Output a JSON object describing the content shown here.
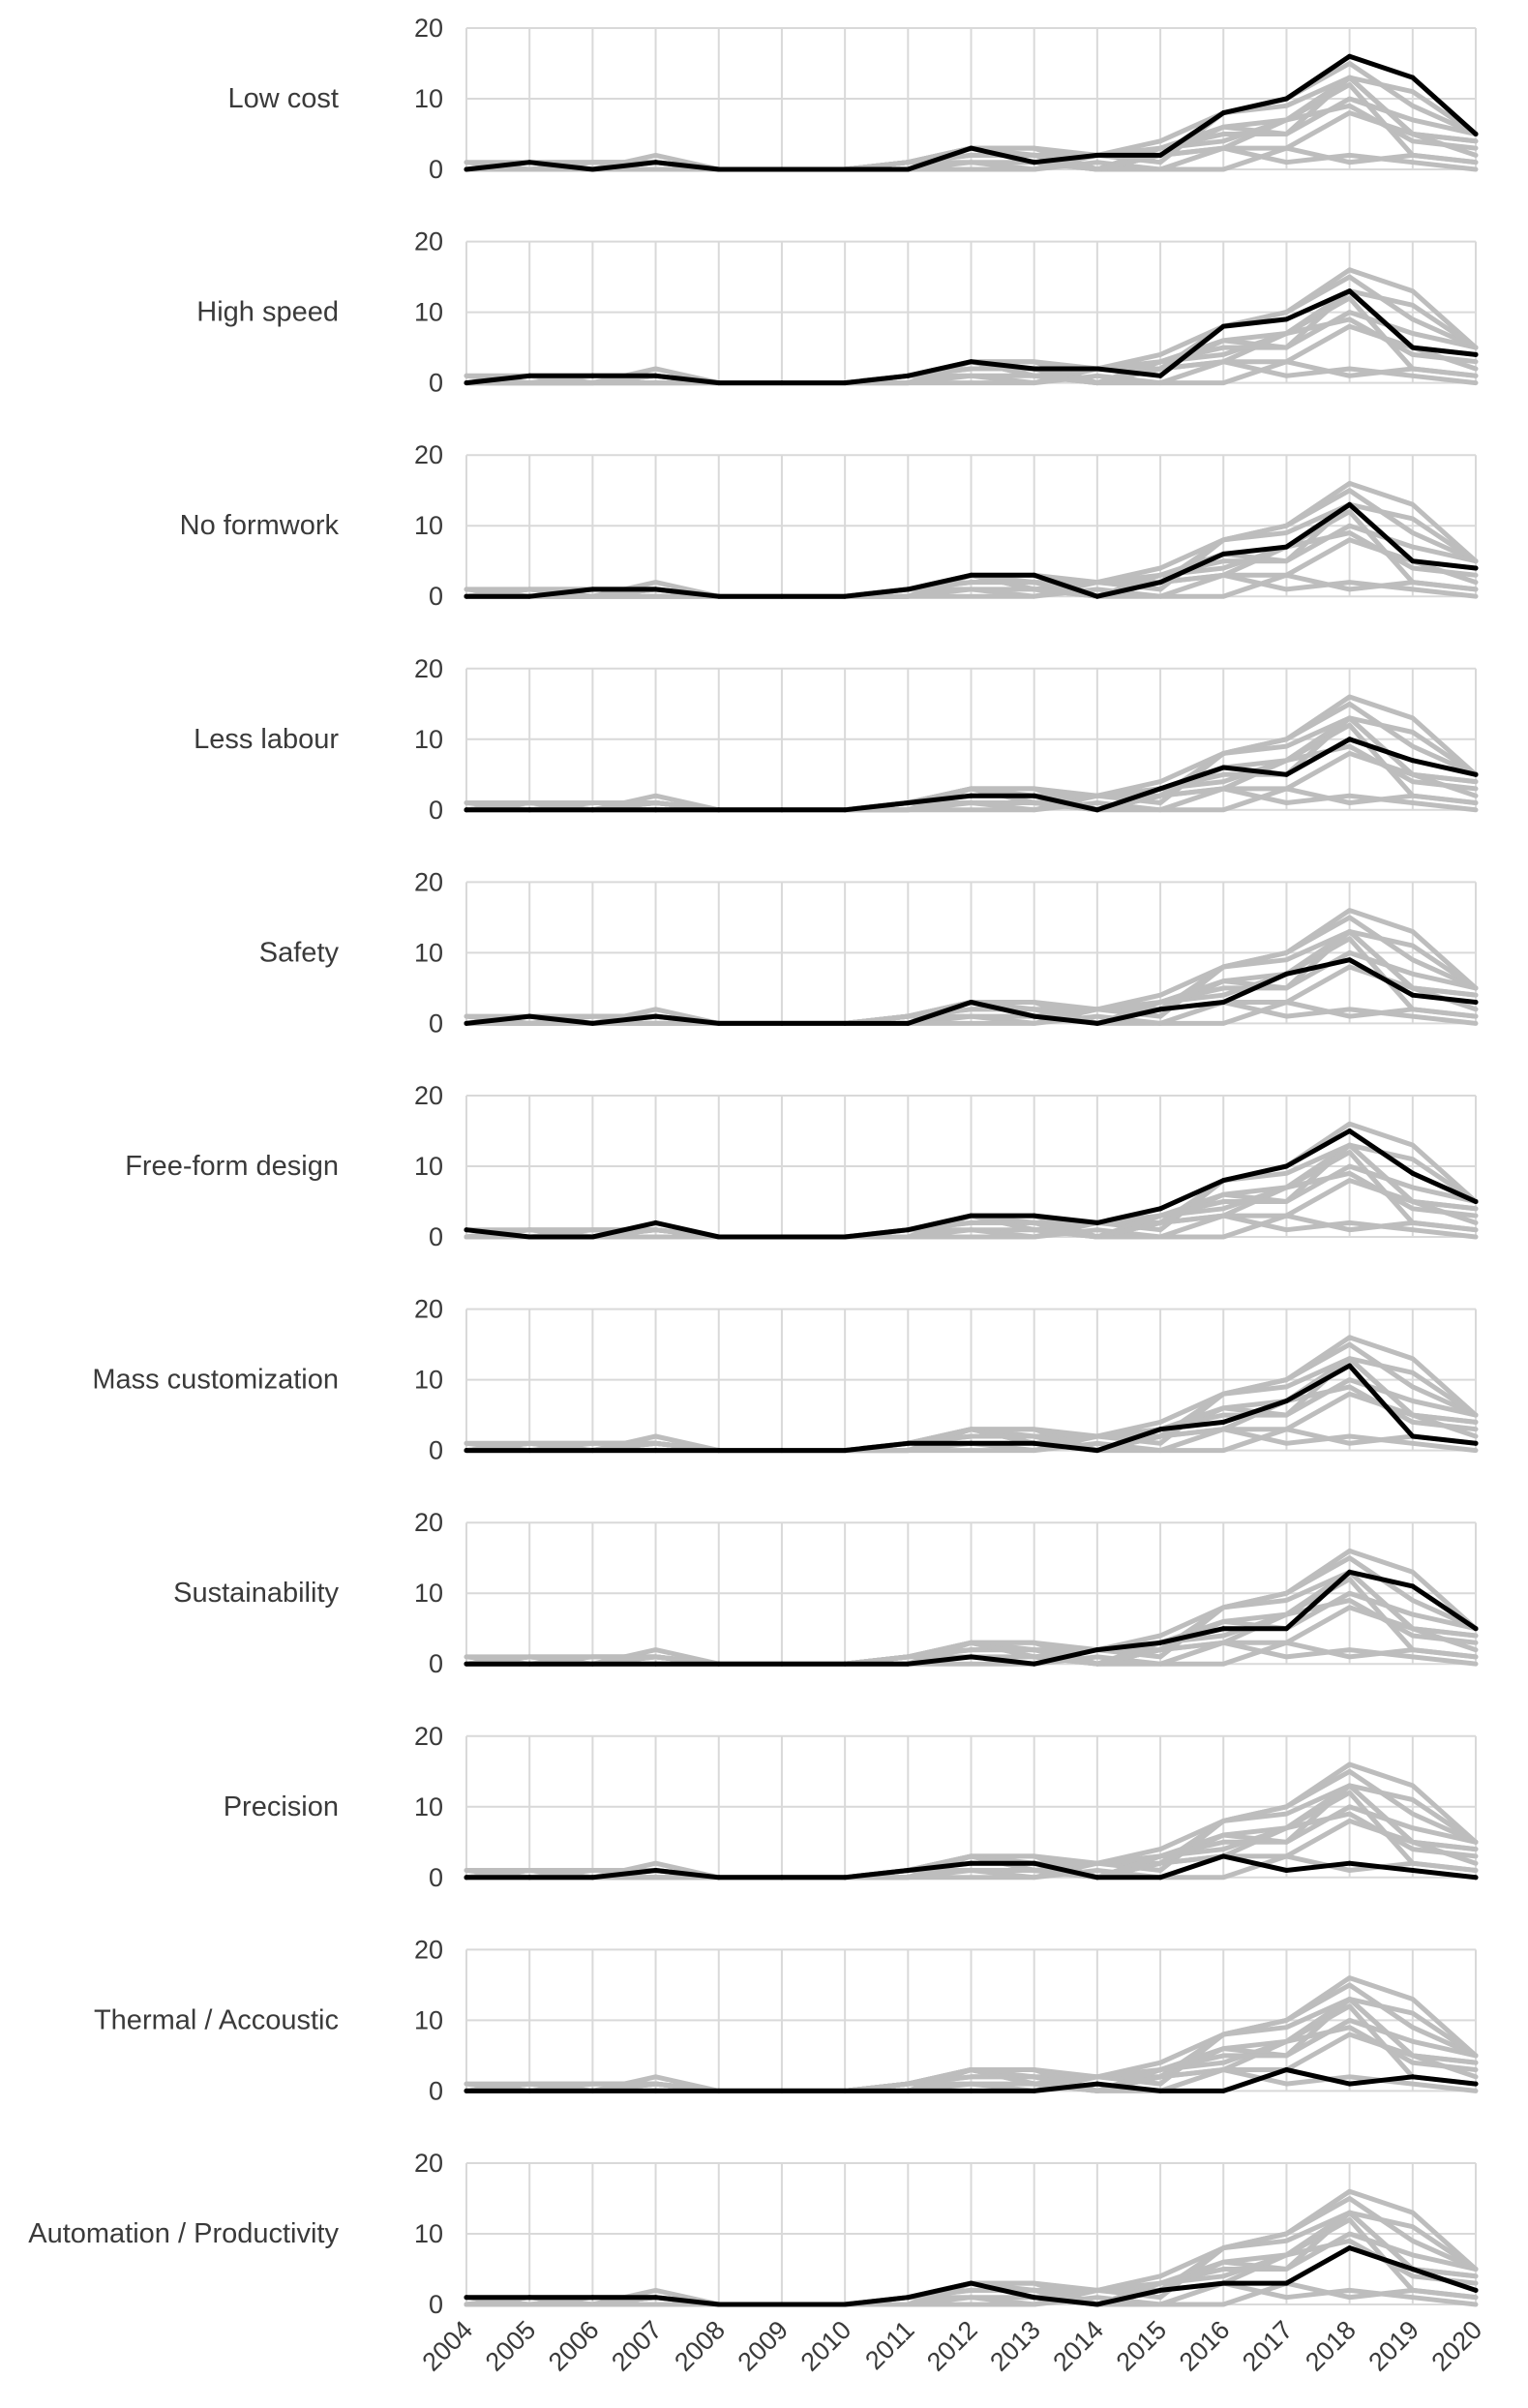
{
  "chart_data": {
    "type": "line",
    "layout": "small-multiples",
    "x": [
      "2004",
      "2005",
      "2006",
      "2007",
      "2008",
      "2009",
      "2010",
      "2011",
      "2012",
      "2013",
      "2014",
      "2015",
      "2016",
      "2017",
      "2018",
      "2019",
      "2020"
    ],
    "ylim": [
      0,
      20
    ],
    "yticks": [
      0,
      10,
      20
    ],
    "grid": true,
    "highlight_color": "#000000",
    "context_color": "#bdbdbd",
    "series": [
      {
        "name": "Low cost",
        "values": [
          0,
          1,
          0,
          1,
          0,
          0,
          0,
          0,
          3,
          1,
          2,
          2,
          8,
          10,
          16,
          13,
          5
        ]
      },
      {
        "name": "High speed",
        "values": [
          0,
          1,
          1,
          1,
          0,
          0,
          0,
          1,
          3,
          2,
          2,
          1,
          8,
          9,
          13,
          5,
          4
        ]
      },
      {
        "name": "No formwork",
        "values": [
          0,
          0,
          1,
          1,
          0,
          0,
          0,
          1,
          3,
          3,
          0,
          2,
          6,
          7,
          13,
          5,
          4
        ]
      },
      {
        "name": "Less labour",
        "values": [
          0,
          0,
          0,
          0,
          0,
          0,
          0,
          1,
          2,
          2,
          0,
          3,
          6,
          5,
          10,
          7,
          5
        ]
      },
      {
        "name": "Safety",
        "values": [
          0,
          1,
          0,
          1,
          0,
          0,
          0,
          0,
          3,
          1,
          0,
          2,
          3,
          7,
          9,
          4,
          3
        ]
      },
      {
        "name": "Free-form design",
        "values": [
          1,
          0,
          0,
          2,
          0,
          0,
          0,
          1,
          3,
          3,
          2,
          4,
          8,
          10,
          15,
          9,
          5
        ]
      },
      {
        "name": "Mass customization",
        "values": [
          0,
          0,
          0,
          0,
          0,
          0,
          0,
          1,
          1,
          1,
          0,
          3,
          4,
          7,
          12,
          2,
          1
        ]
      },
      {
        "name": "Sustainability",
        "values": [
          0,
          0,
          0,
          0,
          0,
          0,
          0,
          0,
          1,
          0,
          2,
          3,
          5,
          5,
          13,
          11,
          5
        ]
      },
      {
        "name": "Precision",
        "values": [
          0,
          0,
          0,
          1,
          0,
          0,
          0,
          1,
          2,
          2,
          0,
          0,
          3,
          1,
          2,
          1,
          0
        ]
      },
      {
        "name": "Thermal / Accoustic",
        "values": [
          0,
          0,
          0,
          0,
          0,
          0,
          0,
          0,
          0,
          0,
          1,
          0,
          0,
          3,
          1,
          2,
          1
        ]
      },
      {
        "name": "Automation / Productivity",
        "values": [
          1,
          1,
          1,
          1,
          0,
          0,
          0,
          1,
          3,
          1,
          0,
          2,
          3,
          3,
          8,
          5,
          2
        ]
      }
    ]
  }
}
